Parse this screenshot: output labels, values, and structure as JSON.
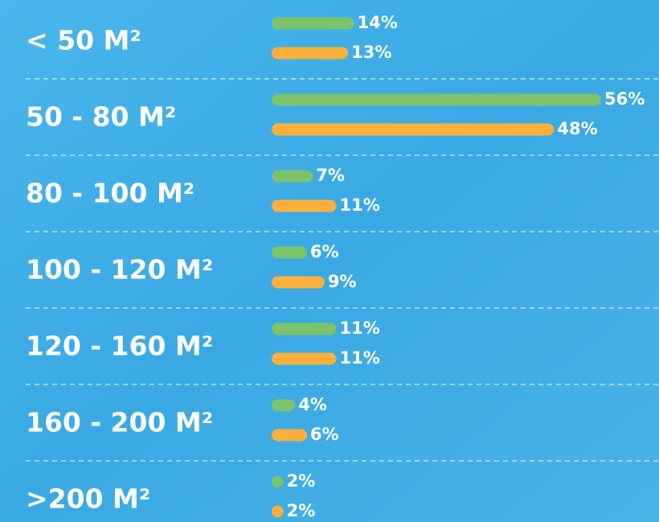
{
  "chart_data": {
    "type": "bar",
    "orientation": "horizontal",
    "categories": [
      "< 50 M²",
      "50 - 80 M²",
      "80 - 100 M²",
      "100 - 120 M²",
      "120 - 160 M²",
      "160 - 200 M²",
      ">200 M²"
    ],
    "series": [
      {
        "color": "#7dc36b",
        "values": [
          14,
          56,
          7,
          6,
          11,
          4,
          2
        ],
        "value_labels": [
          "14%",
          "56%",
          "7%",
          "6%",
          "11%",
          "4%",
          "2%"
        ]
      },
      {
        "color": "#fbb03b",
        "values": [
          13,
          48,
          11,
          9,
          11,
          6,
          2
        ],
        "value_labels": [
          "13%",
          "48%",
          "11%",
          "9%",
          "11%",
          "6%",
          "2%"
        ]
      }
    ]
  }
}
